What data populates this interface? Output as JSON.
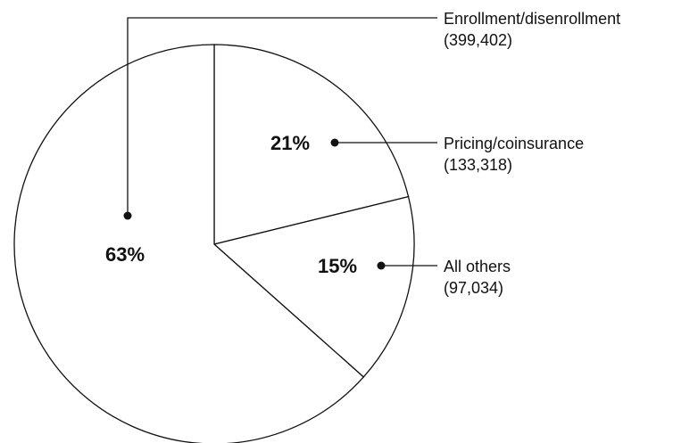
{
  "chart_data": {
    "type": "pie",
    "categories": [
      "Enrollment/disenrollment",
      "Pricing/coinsurance",
      "All others"
    ],
    "values": [
      399402,
      133318,
      97034
    ],
    "value_labels": [
      "(399,402)",
      "(133,318)",
      "(97,034)"
    ],
    "percents": [
      63,
      21,
      15
    ],
    "percent_labels": [
      "63%",
      "21%",
      "15%"
    ],
    "color": "#ffffff"
  }
}
